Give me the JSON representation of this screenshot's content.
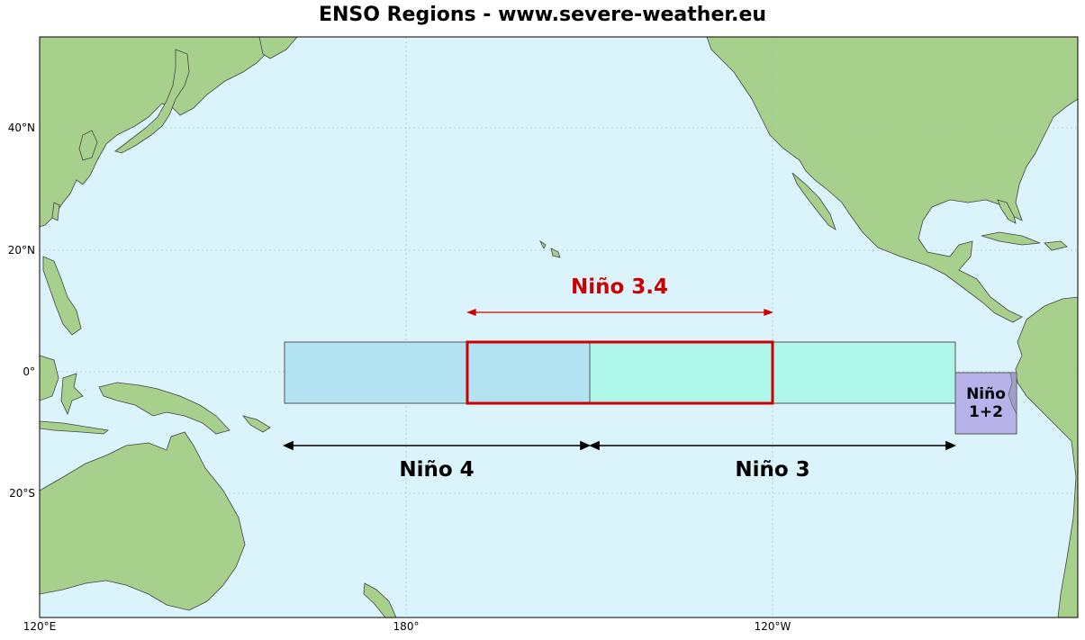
{
  "title": "ENSO Regions - www.severe-weather.eu",
  "lon_ticks": [
    "120°E",
    "180°",
    "120°W"
  ],
  "lat_ticks": [
    "40°N",
    "20°N",
    "0°",
    "20°S"
  ],
  "regions": {
    "nino4": "Niño 4",
    "nino3": "Niño 3",
    "nino34": "Niño 3.4",
    "nino12_line1": "Niño",
    "nino12_line2": "1+2"
  },
  "colors": {
    "ocean": "#dbf3fa",
    "land": "#a8d08d",
    "nino4_fill": "#b3e2f3",
    "nino3_fill": "#aef7e8",
    "nino12_fill": "#b7b3ea",
    "nino34_outline": "#cc0000"
  }
}
